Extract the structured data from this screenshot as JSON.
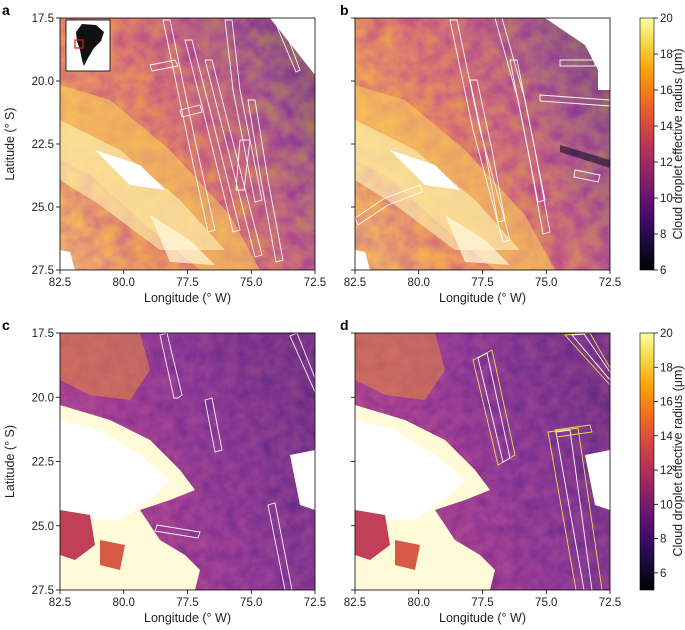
{
  "chart_data": [
    {
      "type": "heatmap",
      "panel_label": "a",
      "xlabel": "Longitude (° W)",
      "ylabel": "Latitude (° S)",
      "xlim": [
        82.5,
        72.5
      ],
      "ylim": [
        17.5,
        27.5
      ],
      "x_ticks": [
        "82.5",
        "80.0",
        "77.5",
        "75.0",
        "72.5"
      ],
      "y_ticks": [
        "17.5",
        "20.0",
        "22.5",
        "25.0",
        "27.5"
      ],
      "inset": "south-america-locator-map",
      "tracks": "ship-tracks-outlined-white"
    },
    {
      "type": "heatmap",
      "panel_label": "b",
      "xlabel": "Longitude (° W)",
      "xlim": [
        82.5,
        72.5
      ],
      "ylim": [
        17.5,
        27.5
      ],
      "x_ticks": [
        "82.5",
        "80.0",
        "77.5",
        "75.0",
        "72.5"
      ],
      "tracks": "ship-tracks-outlined-white"
    },
    {
      "type": "heatmap",
      "panel_label": "c",
      "xlabel": "Longitude (° W)",
      "ylabel": "Latitude (° S)",
      "xlim": [
        82.5,
        72.5
      ],
      "ylim": [
        17.5,
        27.5
      ],
      "x_ticks": [
        "82.5",
        "80.0",
        "77.5",
        "75.0",
        "72.5"
      ],
      "y_ticks": [
        "17.5",
        "20.0",
        "22.5",
        "25.0",
        "27.5"
      ],
      "tracks": "ship-tracks-outlined-white"
    },
    {
      "type": "heatmap",
      "panel_label": "d",
      "xlabel": "Longitude (° W)",
      "xlim": [
        82.5,
        72.5
      ],
      "ylim": [
        17.5,
        27.5
      ],
      "x_ticks": [
        "82.5",
        "80.0",
        "77.5",
        "75.0",
        "72.5"
      ],
      "tracks": "ship-tracks-outlined-white-and-yellow"
    }
  ],
  "colorbars": [
    {
      "label": "Cloud droplet effective radius (μm)",
      "ticks": [
        "6",
        "8",
        "10",
        "12",
        "14",
        "16",
        "18",
        "20"
      ],
      "range": [
        6,
        20
      ],
      "colormap": "inferno"
    },
    {
      "label": "Cloud droplet effective radius (μm)",
      "ticks": [
        "6",
        "8",
        "10",
        "12",
        "14",
        "16",
        "18",
        "20"
      ],
      "range": [
        5,
        20
      ],
      "colormap": "inferno"
    }
  ],
  "colors": {
    "track_white": "#ffffff",
    "track_yellow": "#e6e04a",
    "inset_box": "#e02020"
  }
}
